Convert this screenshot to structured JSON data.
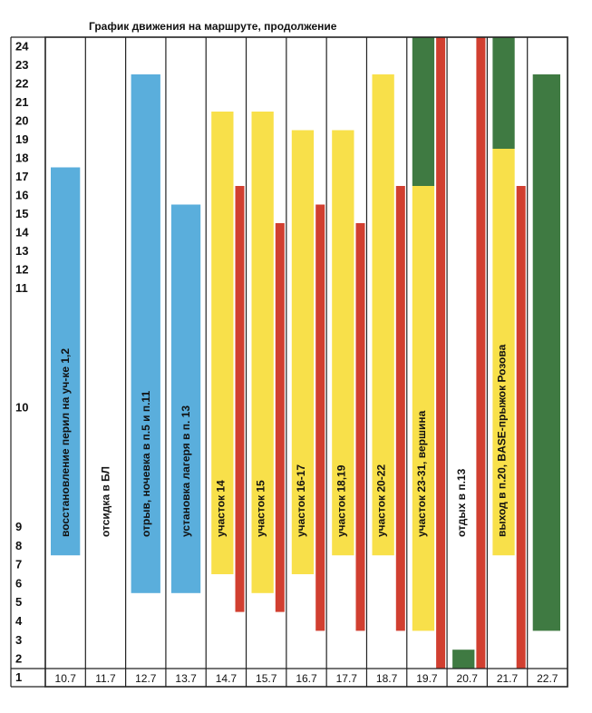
{
  "chart_data": {
    "type": "bar",
    "title": "График движения на маршруте, продолжение",
    "xlabel": "",
    "ylabel": "",
    "y_tick_labels": [
      "1",
      "2",
      "3",
      "4",
      "5",
      "6",
      "7",
      "8",
      "9",
      "10",
      "11",
      "12",
      "13",
      "14",
      "15",
      "16",
      "17",
      "18",
      "19",
      "20",
      "21",
      "22",
      "23",
      "24"
    ],
    "colors": {
      "blue": "#5aaedc",
      "yellow": "#f8e04a",
      "red": "#d13f30",
      "green": "#3f7a42",
      "grid": "#222222"
    },
    "days": [
      {
        "date": "10.7",
        "label": "восстановление перил на уч-ке 1,2",
        "segments": [
          {
            "color": "blue",
            "from": 7.5,
            "to": 17.5
          }
        ]
      },
      {
        "date": "11.7",
        "label": "отсидка в БЛ",
        "segments": []
      },
      {
        "date": "12.7",
        "label": "отрыв, ночевка в п.5 и п.11",
        "segments": [
          {
            "color": "blue",
            "from": 5.5,
            "to": 22.5
          }
        ]
      },
      {
        "date": "13.7",
        "label": "установка лагеря в п. 13",
        "segments": [
          {
            "color": "blue",
            "from": 5.5,
            "to": 15.5
          }
        ]
      },
      {
        "date": "14.7",
        "label": "участок 14",
        "segments": [
          {
            "color": "yellow",
            "from": 6.5,
            "to": 20.5
          },
          {
            "color": "red",
            "from": 4.5,
            "to": 16.5
          }
        ]
      },
      {
        "date": "15.7",
        "label": "участок 15",
        "segments": [
          {
            "color": "yellow",
            "from": 5.5,
            "to": 20.5
          },
          {
            "color": "red",
            "from": 4.5,
            "to": 14.5
          }
        ]
      },
      {
        "date": "16.7",
        "label": "участок 16-17",
        "segments": [
          {
            "color": "yellow",
            "from": 6.5,
            "to": 19.5
          },
          {
            "color": "red",
            "from": 3.5,
            "to": 15.5
          }
        ]
      },
      {
        "date": "17.7",
        "label": "участок 18,19",
        "segments": [
          {
            "color": "yellow",
            "from": 7.5,
            "to": 19.5
          },
          {
            "color": "red",
            "from": 3.5,
            "to": 14.5
          }
        ]
      },
      {
        "date": "18.7",
        "label": "участок 20-22",
        "segments": [
          {
            "color": "yellow",
            "from": 7.5,
            "to": 22.5
          },
          {
            "color": "red",
            "from": 3.5,
            "to": 16.5
          }
        ]
      },
      {
        "date": "19.7",
        "label": "участок 23-31, вершина",
        "segments": [
          {
            "color": "yellow",
            "from": 3.5,
            "to": 16.5
          },
          {
            "color": "green",
            "from": 16.5,
            "to": 24.5
          },
          {
            "color": "red",
            "from": 1.5,
            "to": 24.5
          }
        ]
      },
      {
        "date": "20.7",
        "label": "отдых в п.13",
        "segments": [
          {
            "color": "green",
            "from": 1.5,
            "to": 2.5
          },
          {
            "color": "red",
            "from": 1.5,
            "to": 24.5
          }
        ]
      },
      {
        "date": "21.7",
        "label": "выход в п.20, BASE-прыжок Розова",
        "segments": [
          {
            "color": "yellow",
            "from": 7.5,
            "to": 18.5
          },
          {
            "color": "green",
            "from": 18.5,
            "to": 24.5
          },
          {
            "color": "red",
            "from": 1.5,
            "to": 16.5
          }
        ]
      },
      {
        "date": "22.7",
        "label": "",
        "segments": [
          {
            "color": "green",
            "from": 3.5,
            "to": 22.5
          }
        ]
      }
    ]
  }
}
